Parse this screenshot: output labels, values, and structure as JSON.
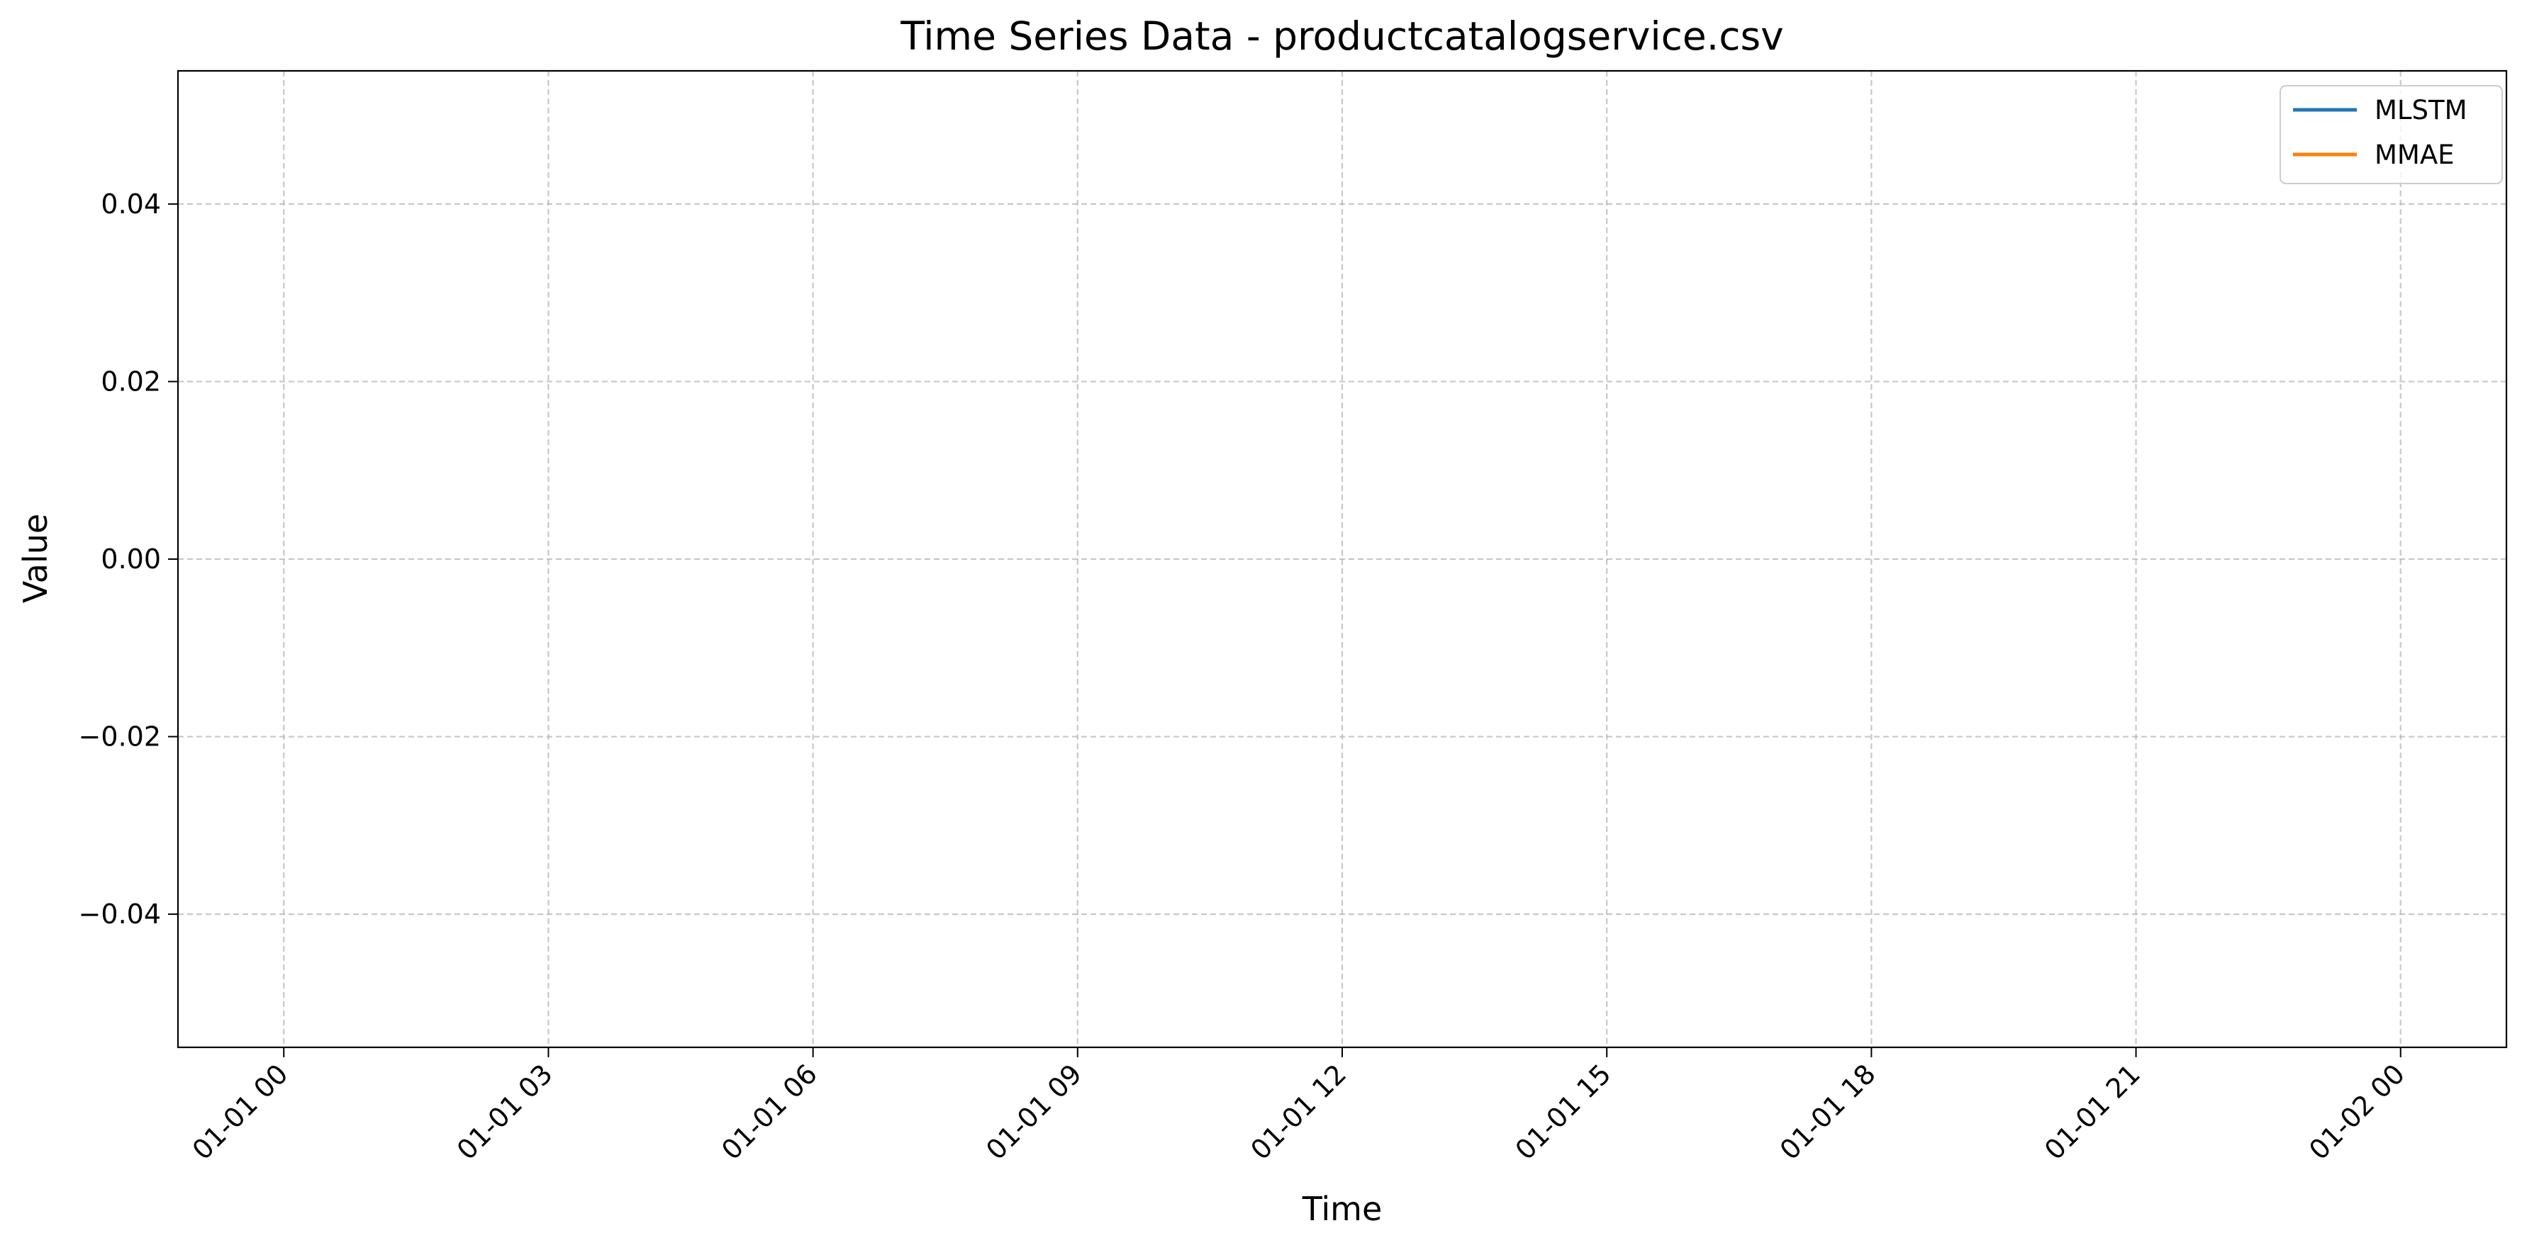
{
  "chart_data": {
    "type": "line",
    "title": "Time Series Data - productcatalogservice.csv",
    "xlabel": "Time",
    "ylabel": "Value",
    "x_tick_labels": [
      "01-01 00",
      "01-01 03",
      "01-01 06",
      "01-01 09",
      "01-01 12",
      "01-01 15",
      "01-01 18",
      "01-01 21",
      "01-02 00"
    ],
    "x_tick_hours": [
      0,
      3,
      6,
      9,
      12,
      15,
      18,
      21,
      24
    ],
    "xlim_hours": [
      -1.2,
      25.2
    ],
    "y_ticks": [
      -0.04,
      -0.02,
      0.0,
      0.02,
      0.04
    ],
    "y_tick_labels": [
      "−0.04",
      "−0.02",
      "0.00",
      "0.02",
      "0.04"
    ],
    "ylim": [
      -0.055,
      0.055
    ],
    "grid": true,
    "legend_position": "top-right",
    "series": [
      {
        "name": "MLSTM",
        "color": "#1f77b4",
        "values": []
      },
      {
        "name": "MMAE",
        "color": "#ff7f0e",
        "values": []
      }
    ]
  }
}
